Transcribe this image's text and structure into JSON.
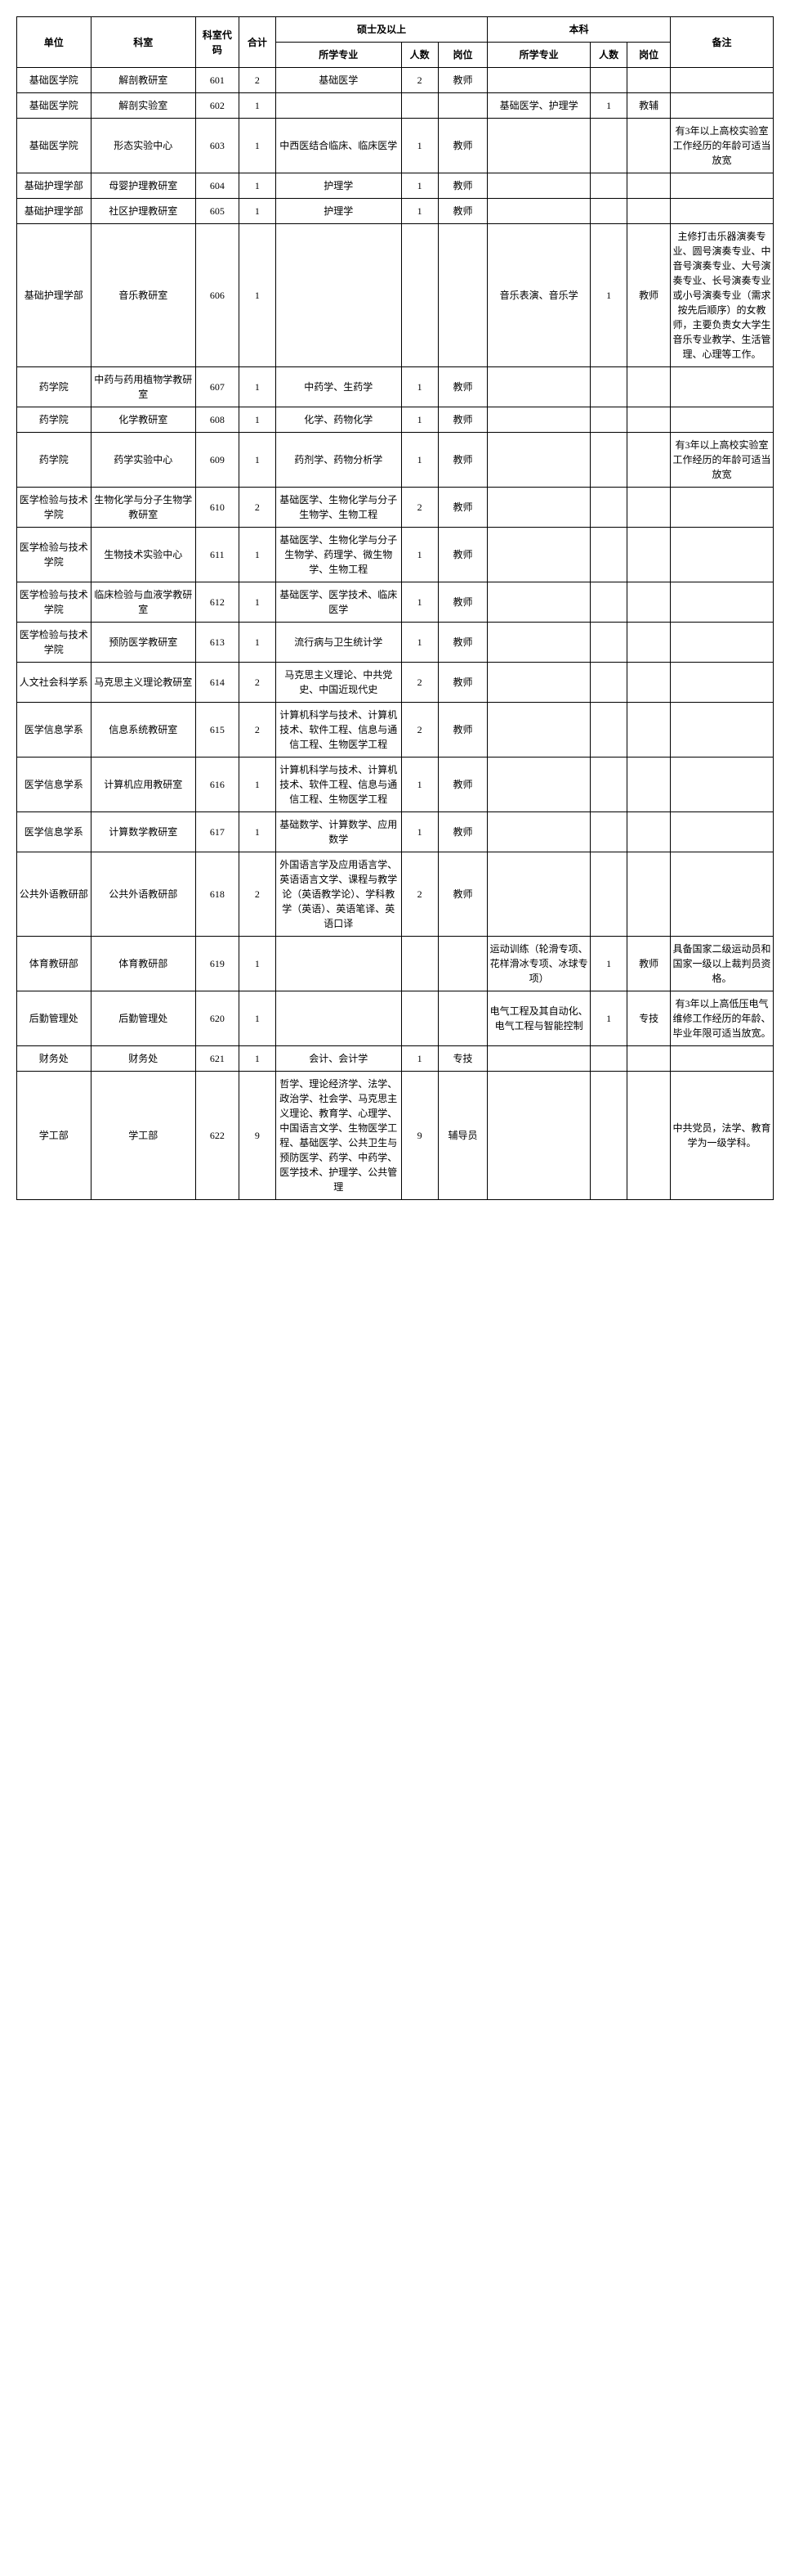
{
  "headers": {
    "unit": "单位",
    "department": "科室",
    "code": "科室代码",
    "total": "合计",
    "masters_group": "硕士及以上",
    "bachelor_group": "本科",
    "major": "所学专业",
    "count": "人数",
    "position": "岗位",
    "note": "备注"
  },
  "rows": [
    {
      "unit": "基础医学院",
      "dept": "解剖教研室",
      "code": "601",
      "total": "2",
      "m_major": "基础医学",
      "m_num": "2",
      "m_pos": "教师",
      "b_major": "",
      "b_num": "",
      "b_pos": "",
      "note": ""
    },
    {
      "unit": "基础医学院",
      "dept": "解剖实验室",
      "code": "602",
      "total": "1",
      "m_major": "",
      "m_num": "",
      "m_pos": "",
      "b_major": "基础医学、护理学",
      "b_num": "1",
      "b_pos": "教辅",
      "note": ""
    },
    {
      "unit": "基础医学院",
      "dept": "形态实验中心",
      "code": "603",
      "total": "1",
      "m_major": "中西医结合临床、临床医学",
      "m_num": "1",
      "m_pos": "教师",
      "b_major": "",
      "b_num": "",
      "b_pos": "",
      "note": "有3年以上高校实验室工作经历的年龄可适当放宽"
    },
    {
      "unit": "基础护理学部",
      "dept": "母婴护理教研室",
      "code": "604",
      "total": "1",
      "m_major": "护理学",
      "m_num": "1",
      "m_pos": "教师",
      "b_major": "",
      "b_num": "",
      "b_pos": "",
      "note": ""
    },
    {
      "unit": "基础护理学部",
      "dept": "社区护理教研室",
      "code": "605",
      "total": "1",
      "m_major": "护理学",
      "m_num": "1",
      "m_pos": "教师",
      "b_major": "",
      "b_num": "",
      "b_pos": "",
      "note": ""
    },
    {
      "unit": "基础护理学部",
      "dept": "音乐教研室",
      "code": "606",
      "total": "1",
      "m_major": "",
      "m_num": "",
      "m_pos": "",
      "b_major": "音乐表演、音乐学",
      "b_num": "1",
      "b_pos": "教师",
      "note": "主修打击乐器演奏专业、圆号演奏专业、中音号演奏专业、大号演奏专业、长号演奏专业或小号演奏专业（需求按先后顺序）的女教师，主要负责女大学生音乐专业教学、生活管理、心理等工作。"
    },
    {
      "unit": "药学院",
      "dept": "中药与药用植物学教研室",
      "code": "607",
      "total": "1",
      "m_major": "中药学、生药学",
      "m_num": "1",
      "m_pos": "教师",
      "b_major": "",
      "b_num": "",
      "b_pos": "",
      "note": ""
    },
    {
      "unit": "药学院",
      "dept": "化学教研室",
      "code": "608",
      "total": "1",
      "m_major": "化学、药物化学",
      "m_num": "1",
      "m_pos": "教师",
      "b_major": "",
      "b_num": "",
      "b_pos": "",
      "note": ""
    },
    {
      "unit": "药学院",
      "dept": "药学实验中心",
      "code": "609",
      "total": "1",
      "m_major": "药剂学、药物分析学",
      "m_num": "1",
      "m_pos": "教师",
      "b_major": "",
      "b_num": "",
      "b_pos": "",
      "note": "有3年以上高校实验室工作经历的年龄可适当放宽"
    },
    {
      "unit": "医学检验与技术学院",
      "dept": "生物化学与分子生物学教研室",
      "code": "610",
      "total": "2",
      "m_major": "基础医学、生物化学与分子生物学、生物工程",
      "m_num": "2",
      "m_pos": "教师",
      "b_major": "",
      "b_num": "",
      "b_pos": "",
      "note": ""
    },
    {
      "unit": "医学检验与技术学院",
      "dept": "生物技术实验中心",
      "code": "611",
      "total": "1",
      "m_major": "基础医学、生物化学与分子生物学、药理学、微生物学、生物工程",
      "m_num": "1",
      "m_pos": "教师",
      "b_major": "",
      "b_num": "",
      "b_pos": "",
      "note": ""
    },
    {
      "unit": "医学检验与技术学院",
      "dept": "临床检验与血液学教研室",
      "code": "612",
      "total": "1",
      "m_major": "基础医学、医学技术、临床医学",
      "m_num": "1",
      "m_pos": "教师",
      "b_major": "",
      "b_num": "",
      "b_pos": "",
      "note": ""
    },
    {
      "unit": "医学检验与技术学院",
      "dept": "预防医学教研室",
      "code": "613",
      "total": "1",
      "m_major": "流行病与卫生统计学",
      "m_num": "1",
      "m_pos": "教师",
      "b_major": "",
      "b_num": "",
      "b_pos": "",
      "note": ""
    },
    {
      "unit": "人文社会科学系",
      "dept": "马克思主义理论教研室",
      "code": "614",
      "total": "2",
      "m_major": "马克思主义理论、中共党史、中国近现代史",
      "m_num": "2",
      "m_pos": "教师",
      "b_major": "",
      "b_num": "",
      "b_pos": "",
      "note": ""
    },
    {
      "unit": "医学信息学系",
      "dept": "信息系统教研室",
      "code": "615",
      "total": "2",
      "m_major": "计算机科学与技术、计算机技术、软件工程、信息与通信工程、生物医学工程",
      "m_num": "2",
      "m_pos": "教师",
      "b_major": "",
      "b_num": "",
      "b_pos": "",
      "note": ""
    },
    {
      "unit": "医学信息学系",
      "dept": "计算机应用教研室",
      "code": "616",
      "total": "1",
      "m_major": "计算机科学与技术、计算机技术、软件工程、信息与通信工程、生物医学工程",
      "m_num": "1",
      "m_pos": "教师",
      "b_major": "",
      "b_num": "",
      "b_pos": "",
      "note": ""
    },
    {
      "unit": "医学信息学系",
      "dept": "计算数学教研室",
      "code": "617",
      "total": "1",
      "m_major": "基础数学、计算数学、应用数学",
      "m_num": "1",
      "m_pos": "教师",
      "b_major": "",
      "b_num": "",
      "b_pos": "",
      "note": ""
    },
    {
      "unit": "公共外语教研部",
      "dept": "公共外语教研部",
      "code": "618",
      "total": "2",
      "m_major": "外国语言学及应用语言学、英语语言文学、课程与教学论（英语教学论）、学科教学（英语）、英语笔译、英语口译",
      "m_num": "2",
      "m_pos": "教师",
      "b_major": "",
      "b_num": "",
      "b_pos": "",
      "note": ""
    },
    {
      "unit": "体育教研部",
      "dept": "体育教研部",
      "code": "619",
      "total": "1",
      "m_major": "",
      "m_num": "",
      "m_pos": "",
      "b_major": "运动训练（轮滑专项、花样滑冰专项、冰球专项）",
      "b_num": "1",
      "b_pos": "教师",
      "note": "具备国家二级运动员和国家一级以上裁判员资格。"
    },
    {
      "unit": "后勤管理处",
      "dept": "后勤管理处",
      "code": "620",
      "total": "1",
      "m_major": "",
      "m_num": "",
      "m_pos": "",
      "b_major": "电气工程及其自动化、电气工程与智能控制",
      "b_num": "1",
      "b_pos": "专技",
      "note": "有3年以上高低压电气维修工作经历的年龄、毕业年限可适当放宽。"
    },
    {
      "unit": "财务处",
      "dept": "财务处",
      "code": "621",
      "total": "1",
      "m_major": "会计、会计学",
      "m_num": "1",
      "m_pos": "专技",
      "b_major": "",
      "b_num": "",
      "b_pos": "",
      "note": ""
    },
    {
      "unit": "学工部",
      "dept": "学工部",
      "code": "622",
      "total": "9",
      "m_major": "哲学、理论经济学、法学、政治学、社会学、马克思主义理论、教育学、心理学、中国语言文学、生物医学工程、基础医学、公共卫生与预防医学、药学、中药学、医学技术、护理学、公共管理",
      "m_num": "9",
      "m_pos": "辅导员",
      "b_major": "",
      "b_num": "",
      "b_pos": "",
      "note": "中共党员，法学、教育学为一级学科。"
    }
  ]
}
